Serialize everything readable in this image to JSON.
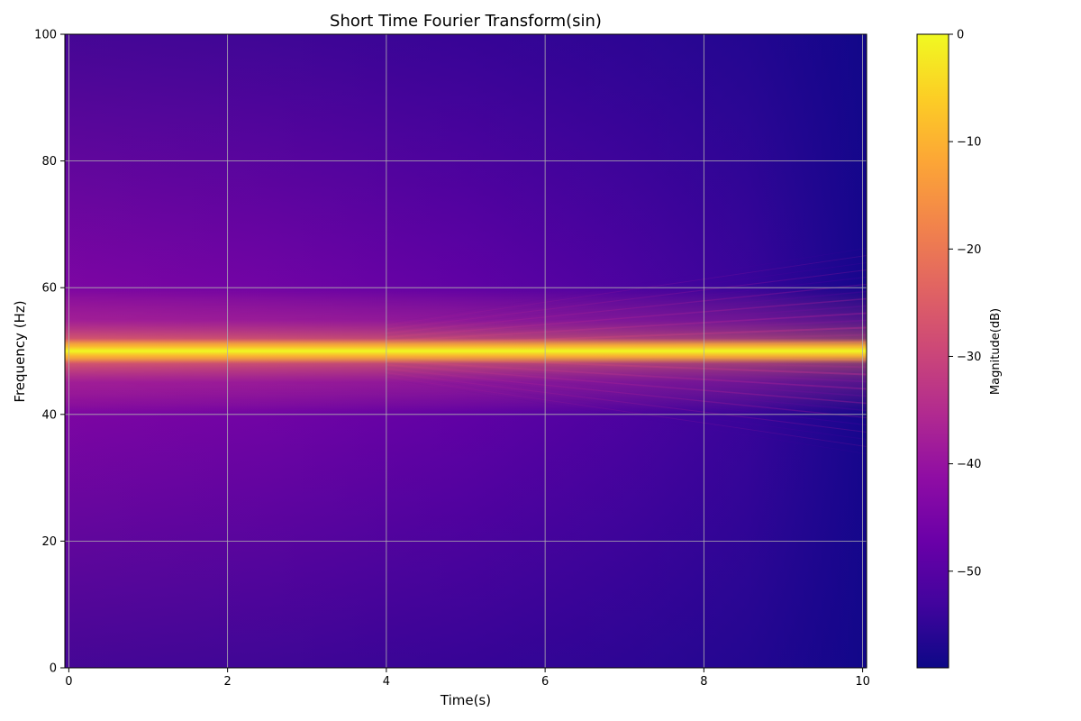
{
  "chart_data": {
    "type": "heatmap",
    "title": "Short Time Fourier Transform(sin)",
    "xlabel": "Time(s)",
    "ylabel": "Frequency (Hz)",
    "xlim": [
      -0.05,
      10.05
    ],
    "ylim": [
      0,
      100
    ],
    "x_ticks": [
      0,
      2,
      4,
      6,
      8,
      10
    ],
    "y_ticks": [
      0,
      20,
      40,
      60,
      80,
      100
    ],
    "grid": true,
    "colormap": "plasma",
    "colorbar": {
      "label": "Magnitude(dB)",
      "range": [
        -59,
        0
      ],
      "ticks": [
        0,
        -10,
        -20,
        -30,
        -40,
        -50
      ]
    },
    "signal": {
      "peak_frequency_hz": 50,
      "peak_magnitude_db": 0,
      "background_db_at_start": -42,
      "background_db_at_end": -59
    }
  }
}
